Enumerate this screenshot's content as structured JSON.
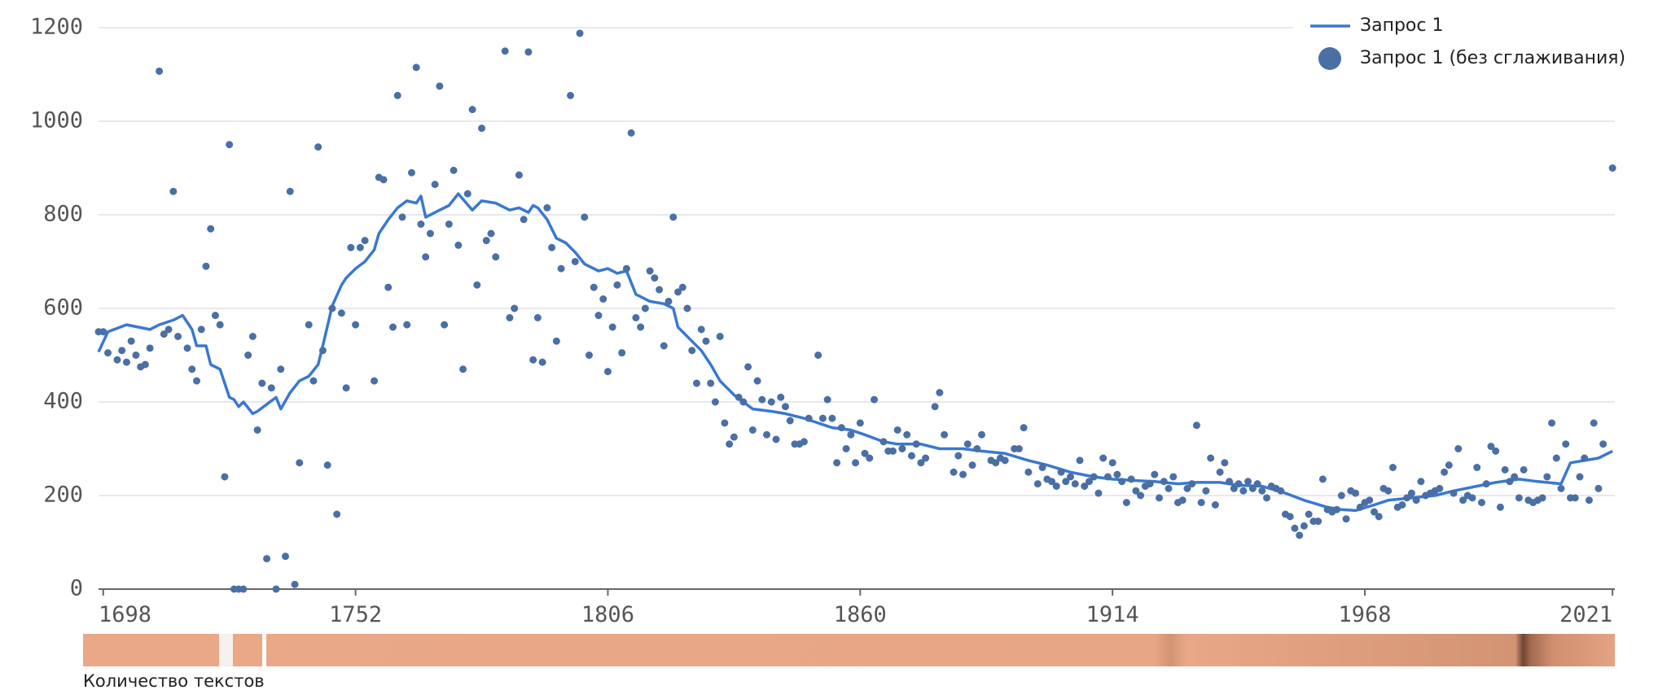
{
  "chart_data": {
    "type": "line",
    "xlim": [
      1697,
      2021.5
    ],
    "xticks": [
      1698,
      1752,
      1806,
      1860,
      1914,
      1968,
      2021
    ],
    "ylim": [
      0,
      1200
    ],
    "yticks": [
      0,
      200,
      400,
      600,
      800,
      1000,
      1200
    ],
    "grid": true,
    "legend": "top-right",
    "strip_label": "Количество текстов",
    "series": [
      {
        "name": "Запрос 1",
        "type": "line",
        "color": "#3a78d0",
        "x": [
          1697,
          1699,
          1703,
          1708,
          1710,
          1713,
          1715,
          1717,
          1718,
          1720,
          1721,
          1723,
          1725,
          1726,
          1727,
          1728,
          1730,
          1731,
          1733,
          1735,
          1736,
          1738,
          1740,
          1742,
          1744,
          1745,
          1747,
          1749,
          1750,
          1752,
          1754,
          1756,
          1757,
          1759,
          1761,
          1763,
          1765,
          1766,
          1767,
          1770,
          1772,
          1774,
          1777,
          1779,
          1782,
          1785,
          1787,
          1789,
          1790,
          1791,
          1793,
          1795,
          1797,
          1799,
          1801,
          1802,
          1804,
          1806,
          1808,
          1810,
          1812,
          1813,
          1815,
          1818,
          1820,
          1821,
          1824,
          1826,
          1828,
          1830,
          1833,
          1835,
          1837,
          1841,
          1844,
          1848,
          1851,
          1854,
          1858,
          1861,
          1865,
          1868,
          1873,
          1877,
          1882,
          1886,
          1891,
          1896,
          1900,
          1905,
          1910,
          1914,
          1919,
          1923,
          1928,
          1932,
          1937,
          1941,
          1946,
          1951,
          1955,
          1960,
          1963,
          1966,
          1970,
          1973,
          1978,
          1983,
          1987,
          1992,
          1996,
          2001,
          2005,
          2010,
          2012,
          2015,
          2018,
          2021
        ],
        "values": [
          507,
          550,
          565,
          555,
          565,
          575,
          585,
          555,
          520,
          520,
          480,
          470,
          410,
          405,
          390,
          400,
          375,
          380,
          395,
          410,
          385,
          420,
          445,
          455,
          480,
          520,
          605,
          650,
          665,
          685,
          700,
          725,
          760,
          790,
          815,
          830,
          825,
          840,
          795,
          810,
          820,
          845,
          810,
          830,
          825,
          810,
          815,
          805,
          820,
          815,
          790,
          750,
          740,
          720,
          695,
          690,
          680,
          685,
          675,
          680,
          630,
          625,
          615,
          610,
          600,
          560,
          530,
          510,
          480,
          445,
          415,
          400,
          385,
          380,
          375,
          365,
          355,
          345,
          340,
          330,
          315,
          310,
          310,
          300,
          300,
          295,
          290,
          275,
          265,
          250,
          240,
          235,
          232,
          230,
          225,
          228,
          228,
          222,
          220,
          205,
          190,
          175,
          170,
          168,
          180,
          190,
          195,
          200,
          210,
          220,
          228,
          235,
          230,
          225,
          270,
          275,
          280,
          295
        ]
      },
      {
        "name": "Запрос 1 (без сглаживания)",
        "type": "scatter",
        "color": "#4a6fa5",
        "x": [
          1697,
          1698,
          1699,
          1701,
          1702,
          1703,
          1704,
          1705,
          1706,
          1707,
          1708,
          1710,
          1711,
          1712,
          1713,
          1714,
          1716,
          1717,
          1718,
          1719,
          1720,
          1721,
          1722,
          1723,
          1724,
          1725,
          1726,
          1727,
          1728,
          1729,
          1730,
          1731,
          1732,
          1733,
          1734,
          1735,
          1736,
          1737,
          1738,
          1739,
          1740,
          1742,
          1743,
          1744,
          1745,
          1746,
          1747,
          1748,
          1749,
          1750,
          1751,
          1752,
          1753,
          1754,
          1756,
          1757,
          1758,
          1759,
          1760,
          1761,
          1762,
          1763,
          1764,
          1765,
          1766,
          1767,
          1768,
          1769,
          1770,
          1771,
          1772,
          1773,
          1774,
          1775,
          1776,
          1777,
          1778,
          1779,
          1780,
          1781,
          1782,
          1784,
          1785,
          1786,
          1787,
          1788,
          1789,
          1790,
          1791,
          1792,
          1793,
          1794,
          1795,
          1796,
          1798,
          1799,
          1800,
          1801,
          1802,
          1803,
          1804,
          1805,
          1806,
          1807,
          1808,
          1809,
          1810,
          1811,
          1812,
          1813,
          1814,
          1815,
          1816,
          1817,
          1818,
          1819,
          1820,
          1821,
          1822,
          1823,
          1824,
          1825,
          1826,
          1827,
          1828,
          1829,
          1830,
          1831,
          1832,
          1833,
          1834,
          1835,
          1836,
          1837,
          1838,
          1839,
          1840,
          1841,
          1842,
          1843,
          1844,
          1845,
          1846,
          1847,
          1848,
          1849,
          1851,
          1852,
          1853,
          1854,
          1855,
          1856,
          1857,
          1858,
          1859,
          1860,
          1861,
          1862,
          1863,
          1865,
          1866,
          1867,
          1868,
          1869,
          1870,
          1871,
          1872,
          1873,
          1874,
          1876,
          1877,
          1878,
          1880,
          1881,
          1882,
          1883,
          1884,
          1885,
          1886,
          1888,
          1889,
          1890,
          1891,
          1893,
          1894,
          1895,
          1896,
          1898,
          1899,
          1900,
          1901,
          1902,
          1903,
          1904,
          1905,
          1906,
          1907,
          1908,
          1909,
          1910,
          1911,
          1912,
          1913,
          1914,
          1915,
          1916,
          1917,
          1918,
          1919,
          1920,
          1921,
          1922,
          1923,
          1924,
          1925,
          1926,
          1927,
          1928,
          1929,
          1930,
          1931,
          1932,
          1933,
          1934,
          1935,
          1936,
          1937,
          1938,
          1939,
          1940,
          1941,
          1942,
          1943,
          1944,
          1945,
          1946,
          1947,
          1948,
          1949,
          1950,
          1951,
          1952,
          1953,
          1954,
          1955,
          1956,
          1957,
          1958,
          1959,
          1960,
          1961,
          1962,
          1963,
          1964,
          1965,
          1966,
          1967,
          1968,
          1969,
          1970,
          1971,
          1972,
          1973,
          1974,
          1975,
          1976,
          1977,
          1978,
          1979,
          1980,
          1981,
          1982,
          1983,
          1984,
          1985,
          1986,
          1987,
          1988,
          1989,
          1990,
          1991,
          1992,
          1993,
          1994,
          1995,
          1996,
          1997,
          1998,
          1999,
          2000,
          2001,
          2002,
          2003,
          2004,
          2005,
          2006,
          2007,
          2008,
          2009,
          2010,
          2011,
          2012,
          2013,
          2014,
          2015,
          2016,
          2017,
          2018,
          2019,
          2021
        ],
        "values": [
          550,
          550,
          505,
          490,
          510,
          485,
          530,
          500,
          475,
          480,
          515,
          1107,
          545,
          555,
          850,
          540,
          515,
          470,
          445,
          555,
          690,
          770,
          585,
          565,
          240,
          950,
          0,
          0,
          0,
          500,
          540,
          340,
          440,
          65,
          430,
          0,
          470,
          70,
          850,
          10,
          270,
          565,
          445,
          945,
          510,
          265,
          600,
          160,
          590,
          430,
          730,
          565,
          730,
          745,
          445,
          880,
          875,
          645,
          560,
          1055,
          795,
          565,
          890,
          1115,
          780,
          710,
          760,
          865,
          1075,
          565,
          780,
          895,
          735,
          470,
          845,
          1025,
          650,
          985,
          745,
          760,
          710,
          1150,
          580,
          600,
          885,
          790,
          1148,
          490,
          580,
          485,
          815,
          730,
          530,
          685,
          1055,
          700,
          1188,
          795,
          500,
          645,
          585,
          620,
          465,
          560,
          650,
          505,
          685,
          975,
          580,
          560,
          600,
          680,
          665,
          640,
          520,
          615,
          795,
          635,
          645,
          600,
          510,
          440,
          555,
          530,
          440,
          400,
          540,
          355,
          310,
          325,
          410,
          400,
          475,
          340,
          445,
          405,
          330,
          400,
          320,
          410,
          390,
          360,
          310,
          310,
          315,
          365,
          500,
          365,
          405,
          365,
          270,
          345,
          300,
          330,
          270,
          355,
          290,
          280,
          405,
          315,
          295,
          295,
          340,
          300,
          330,
          285,
          310,
          270,
          280,
          390,
          420,
          330,
          250,
          285,
          245,
          310,
          265,
          300,
          330,
          275,
          270,
          280,
          275,
          300,
          300,
          345,
          250,
          225,
          260,
          235,
          230,
          220,
          250,
          230,
          240,
          225,
          275,
          220,
          230,
          240,
          205,
          280,
          240,
          270,
          245,
          230,
          185,
          235,
          210,
          200,
          220,
          225,
          245,
          195,
          230,
          215,
          240,
          185,
          190,
          215,
          225,
          350,
          185,
          210,
          280,
          180,
          250,
          270,
          230,
          215,
          225,
          210,
          230,
          215,
          225,
          210,
          195,
          220,
          215,
          210,
          160,
          155,
          130,
          115,
          135,
          160,
          145,
          145,
          235,
          170,
          165,
          170,
          200,
          150,
          210,
          205,
          175,
          185,
          190,
          165,
          155,
          215,
          210,
          260,
          175,
          180,
          195,
          205,
          190,
          230,
          200,
          205,
          210,
          215,
          250,
          265,
          205,
          300,
          190,
          200,
          195,
          260,
          185,
          225,
          305,
          295,
          175,
          255,
          230,
          240,
          195,
          255,
          190,
          185,
          190,
          195,
          240,
          355,
          280,
          215,
          310,
          195,
          195,
          240,
          280,
          190,
          355,
          215,
          310,
          900
        ]
      }
    ]
  }
}
